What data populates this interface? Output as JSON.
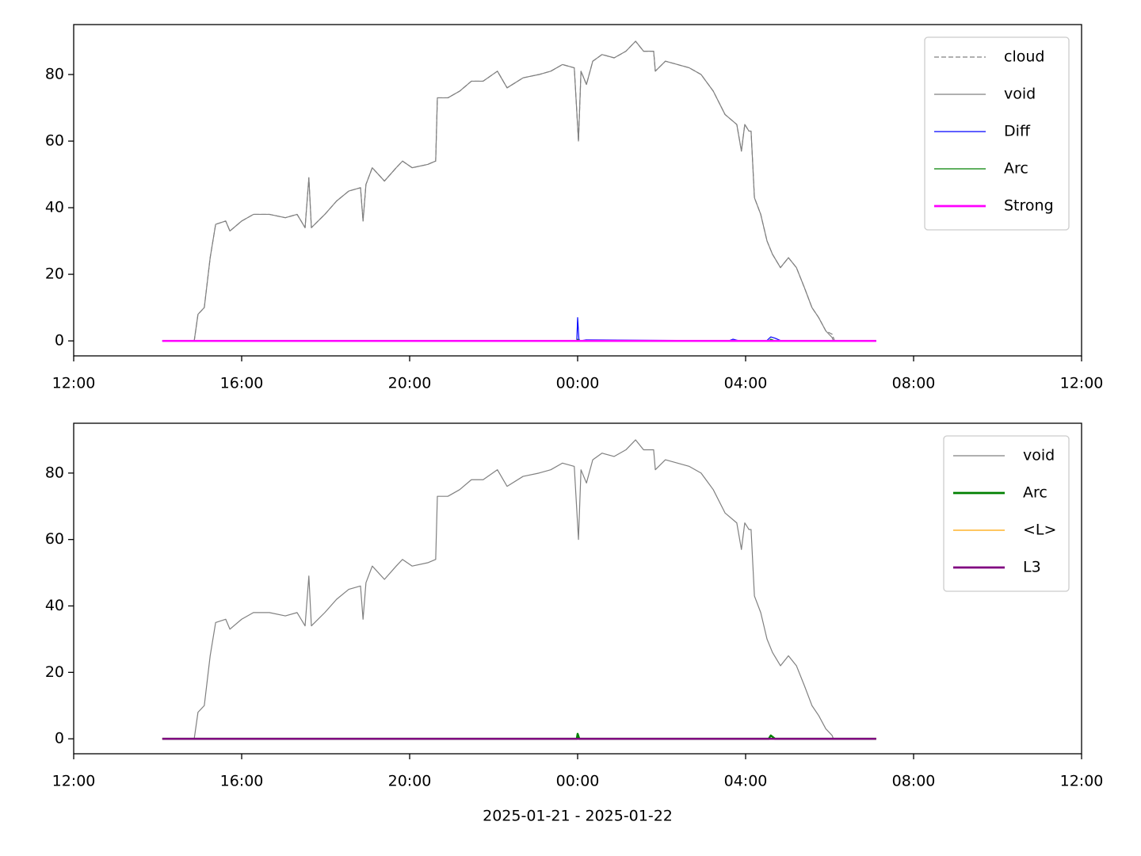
{
  "chart_data": [
    {
      "type": "line",
      "xlim": [
        12,
        36
      ],
      "ylim": [
        -4.5,
        95
      ],
      "xticks": [
        {
          "value": 12,
          "label": "12:00"
        },
        {
          "value": 16,
          "label": "16:00"
        },
        {
          "value": 20,
          "label": "20:00"
        },
        {
          "value": 24,
          "label": "00:00"
        },
        {
          "value": 28,
          "label": "04:00"
        },
        {
          "value": 32,
          "label": "08:00"
        },
        {
          "value": 36,
          "label": "12:00"
        }
      ],
      "yticks": [
        0,
        20,
        40,
        60,
        80
      ],
      "legend": "upper right",
      "series": [
        {
          "name": "cloud",
          "color": "#808080",
          "linestyle": "dashed",
          "linewidth": 1.2,
          "x": [
            14.87,
            14.96,
            15.11,
            15.25,
            15.38,
            15.62,
            15.72,
            16.0,
            16.28,
            16.66,
            17.04,
            17.32,
            17.51,
            17.6,
            17.66,
            17.98,
            18.26,
            18.55,
            18.83,
            18.89,
            18.96,
            19.11,
            19.4,
            19.68,
            19.83,
            20.06,
            20.43,
            20.62,
            20.66,
            20.91,
            21.19,
            21.47,
            21.75,
            22.09,
            22.32,
            22.7,
            23.08,
            23.36,
            23.64,
            23.92,
            24.02,
            24.08,
            24.21,
            24.36,
            24.58,
            24.87,
            25.15,
            25.38,
            25.57,
            25.81,
            25.85,
            26.09,
            26.38,
            26.66,
            26.94,
            27.23,
            27.51,
            27.79,
            27.9,
            27.98,
            28.08,
            28.13,
            28.21,
            28.36,
            28.51,
            28.64,
            28.83,
            29.02,
            29.21,
            29.4,
            29.58,
            29.74,
            29.91,
            30.06,
            30.12
          ],
          "values": [
            0,
            8,
            10,
            25,
            35,
            36,
            33,
            36,
            38,
            38,
            37,
            38,
            34,
            49,
            34,
            38,
            42,
            45,
            46,
            36,
            47,
            52,
            48,
            52,
            54,
            52,
            53,
            54,
            73,
            73,
            75,
            78,
            78,
            81,
            76,
            79,
            80,
            81,
            83,
            82,
            60,
            81,
            77,
            84,
            86,
            85,
            87,
            90,
            87,
            87,
            81,
            84,
            83,
            82,
            80,
            75,
            68,
            65,
            57,
            65,
            63,
            63,
            43,
            38,
            30,
            26,
            22,
            25,
            22,
            16,
            10,
            7,
            3,
            2,
            0
          ]
        },
        {
          "name": "void",
          "color": "#808080",
          "linestyle": "solid",
          "linewidth": 1.2,
          "x": [
            14.87,
            14.96,
            15.11,
            15.25,
            15.38,
            15.62,
            15.72,
            16.0,
            16.28,
            16.66,
            17.04,
            17.32,
            17.51,
            17.6,
            17.66,
            17.98,
            18.26,
            18.55,
            18.83,
            18.89,
            18.96,
            19.11,
            19.4,
            19.68,
            19.83,
            20.06,
            20.43,
            20.62,
            20.66,
            20.91,
            21.19,
            21.47,
            21.75,
            22.09,
            22.32,
            22.7,
            23.08,
            23.36,
            23.64,
            23.92,
            24.02,
            24.08,
            24.21,
            24.36,
            24.58,
            24.87,
            25.15,
            25.38,
            25.57,
            25.81,
            25.85,
            26.09,
            26.38,
            26.66,
            26.94,
            27.23,
            27.51,
            27.79,
            27.9,
            27.98,
            28.08,
            28.13,
            28.21,
            28.36,
            28.51,
            28.64,
            28.83,
            29.02,
            29.21,
            29.4,
            29.58,
            29.74,
            29.91,
            30.06,
            30.09
          ],
          "values": [
            0,
            8,
            10,
            25,
            35,
            36,
            33,
            36,
            38,
            38,
            37,
            38,
            34,
            49,
            34,
            38,
            42,
            45,
            46,
            36,
            47,
            52,
            48,
            52,
            54,
            52,
            53,
            54,
            73,
            73,
            75,
            78,
            78,
            81,
            76,
            79,
            80,
            81,
            83,
            82,
            60,
            81,
            77,
            84,
            86,
            85,
            87,
            90,
            87,
            87,
            81,
            84,
            83,
            82,
            80,
            75,
            68,
            65,
            57,
            65,
            63,
            63,
            43,
            38,
            30,
            26,
            22,
            25,
            22,
            16,
            10,
            7,
            3,
            1,
            0
          ]
        },
        {
          "name": "Diff",
          "color": "#0000ff",
          "linestyle": "solid",
          "linewidth": 1.2,
          "x": [
            14.11,
            23.98,
            24.0,
            24.03,
            24.06,
            24.2,
            27.6,
            27.7,
            27.85,
            28.5,
            28.6,
            28.7,
            28.85,
            31.11
          ],
          "values": [
            0,
            0,
            7,
            0.5,
            0,
            0.3,
            0,
            0.5,
            0,
            0,
            1.2,
            0.8,
            0,
            0
          ]
        },
        {
          "name": "Arc",
          "color": "#008000",
          "linestyle": "solid",
          "linewidth": 1.2,
          "x": [
            14.11,
            23.98,
            24.0,
            24.04,
            28.55,
            28.6,
            28.7,
            31.11
          ],
          "values": [
            0,
            0,
            0.5,
            0,
            0,
            0.5,
            0,
            0
          ]
        },
        {
          "name": "Strong",
          "color": "#ff00ff",
          "linestyle": "solid",
          "linewidth": 2.5,
          "x": [
            14.11,
            31.11
          ],
          "values": [
            0,
            0
          ]
        }
      ]
    },
    {
      "type": "line",
      "xlim": [
        12,
        36
      ],
      "ylim": [
        -4.5,
        95
      ],
      "xlabel": "2025-01-21 - 2025-01-22",
      "xticks": [
        {
          "value": 12,
          "label": "12:00"
        },
        {
          "value": 16,
          "label": "16:00"
        },
        {
          "value": 20,
          "label": "20:00"
        },
        {
          "value": 24,
          "label": "00:00"
        },
        {
          "value": 28,
          "label": "04:00"
        },
        {
          "value": 32,
          "label": "08:00"
        },
        {
          "value": 36,
          "label": "12:00"
        }
      ],
      "yticks": [
        0,
        20,
        40,
        60,
        80
      ],
      "legend": "upper right",
      "series": [
        {
          "name": "void",
          "color": "#808080",
          "linestyle": "solid",
          "linewidth": 1.2,
          "x": [
            14.87,
            14.96,
            15.11,
            15.25,
            15.38,
            15.62,
            15.72,
            16.0,
            16.28,
            16.66,
            17.04,
            17.32,
            17.51,
            17.6,
            17.66,
            17.98,
            18.26,
            18.55,
            18.83,
            18.89,
            18.96,
            19.11,
            19.4,
            19.68,
            19.83,
            20.06,
            20.43,
            20.62,
            20.66,
            20.91,
            21.19,
            21.47,
            21.75,
            22.09,
            22.32,
            22.7,
            23.08,
            23.36,
            23.64,
            23.92,
            24.02,
            24.08,
            24.21,
            24.36,
            24.58,
            24.87,
            25.15,
            25.38,
            25.57,
            25.81,
            25.85,
            26.09,
            26.38,
            26.66,
            26.94,
            27.23,
            27.51,
            27.79,
            27.9,
            27.98,
            28.08,
            28.13,
            28.21,
            28.36,
            28.51,
            28.64,
            28.83,
            29.02,
            29.21,
            29.4,
            29.58,
            29.74,
            29.91,
            30.06,
            30.09
          ],
          "values": [
            0,
            8,
            10,
            25,
            35,
            36,
            33,
            36,
            38,
            38,
            37,
            38,
            34,
            49,
            34,
            38,
            42,
            45,
            46,
            36,
            47,
            52,
            48,
            52,
            54,
            52,
            53,
            54,
            73,
            73,
            75,
            78,
            78,
            81,
            76,
            79,
            80,
            81,
            83,
            82,
            60,
            81,
            77,
            84,
            86,
            85,
            87,
            90,
            87,
            87,
            81,
            84,
            83,
            82,
            80,
            75,
            68,
            65,
            57,
            65,
            63,
            63,
            43,
            38,
            30,
            26,
            22,
            25,
            22,
            16,
            10,
            7,
            3,
            1,
            0
          ]
        },
        {
          "name": "Arc",
          "color": "#008000",
          "linestyle": "solid",
          "linewidth": 2.5,
          "x": [
            14.11,
            23.98,
            24.0,
            24.04,
            28.55,
            28.6,
            28.7,
            31.11
          ],
          "values": [
            0,
            0,
            1.5,
            0,
            0,
            1,
            0,
            0
          ]
        },
        {
          "name": "<L>",
          "color": "#ffa500",
          "linestyle": "solid",
          "linewidth": 1.2,
          "x": [
            14.11,
            31.11
          ],
          "values": [
            0,
            0
          ]
        },
        {
          "name": "L3",
          "color": "#800080",
          "linestyle": "solid",
          "linewidth": 2.5,
          "x": [
            14.11,
            31.11
          ],
          "values": [
            0,
            0
          ]
        }
      ]
    }
  ]
}
